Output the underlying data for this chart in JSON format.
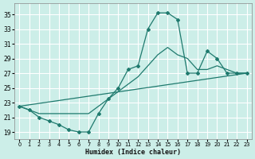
{
  "xlabel": "Humidex (Indice chaleur)",
  "bg_color": "#cceee8",
  "grid_color": "#ffffff",
  "line_color": "#1f7a6e",
  "xlim": [
    -0.5,
    23.5
  ],
  "ylim": [
    18.0,
    36.5
  ],
  "xticks": [
    0,
    1,
    2,
    3,
    4,
    5,
    6,
    7,
    8,
    9,
    10,
    11,
    12,
    13,
    14,
    15,
    16,
    17,
    18,
    19,
    20,
    21,
    22,
    23
  ],
  "yticks": [
    19,
    21,
    23,
    25,
    27,
    29,
    31,
    33,
    35
  ],
  "curve1_x": [
    0,
    1,
    2,
    3,
    4,
    5,
    6,
    7,
    8,
    9,
    10,
    11,
    12,
    13,
    14,
    15,
    16,
    17,
    18,
    19,
    20,
    21,
    22,
    23
  ],
  "curve1_y": [
    22.5,
    22.0,
    21.0,
    20.5,
    20.0,
    19.3,
    19.0,
    19.0,
    21.5,
    23.5,
    25.0,
    27.5,
    28.0,
    33.0,
    35.2,
    35.2,
    34.3,
    27.0,
    27.0,
    30.0,
    29.0,
    27.0,
    27.0,
    27.0
  ],
  "curve2_x": [
    0,
    1,
    2,
    3,
    4,
    5,
    6,
    7,
    8,
    9,
    10,
    11,
    12,
    13,
    14,
    15,
    16,
    17,
    18,
    19,
    20,
    21,
    22,
    23
  ],
  "curve2_y": [
    22.5,
    22.0,
    21.5,
    21.5,
    21.5,
    21.5,
    21.5,
    21.5,
    22.5,
    23.5,
    24.5,
    25.5,
    26.5,
    28.0,
    29.5,
    30.5,
    29.5,
    29.0,
    27.5,
    27.5,
    28.0,
    27.5,
    27.0,
    27.0
  ],
  "curve3_x": [
    0,
    23
  ],
  "curve3_y": [
    22.5,
    27.0
  ],
  "xtick_fontsize": 4.8,
  "ytick_fontsize": 5.5,
  "xlabel_fontsize": 6.0
}
